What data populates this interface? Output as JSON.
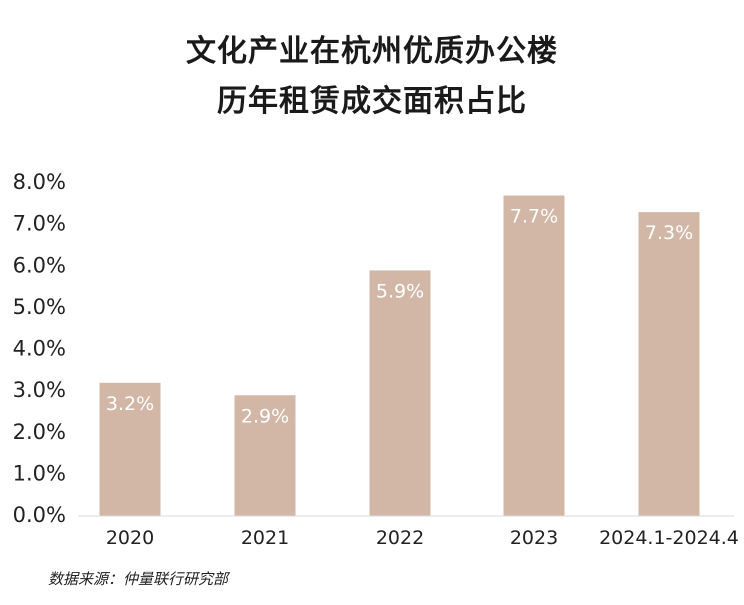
{
  "chart_data": {
    "type": "bar",
    "title_lines": [
      "文化产业在杭州优质办公楼",
      "历年租赁成交面积占比"
    ],
    "categories": [
      "2020",
      "2021",
      "2022",
      "2023",
      "2024.1-2024.4"
    ],
    "values": [
      3.2,
      2.9,
      5.9,
      7.7,
      7.3
    ],
    "data_labels": [
      "3.2%",
      "2.9%",
      "5.9%",
      "7.7%",
      "7.3%"
    ],
    "y_ticks": [
      "0.0%",
      "1.0%",
      "2.0%",
      "3.0%",
      "4.0%",
      "5.0%",
      "6.0%",
      "7.0%",
      "8.0%"
    ],
    "ylim": [
      0,
      8
    ],
    "xlabel": "",
    "ylabel": "",
    "grid": false,
    "bar_color": "#d2b7a6",
    "source": "数据来源：仲量联行研究部"
  }
}
